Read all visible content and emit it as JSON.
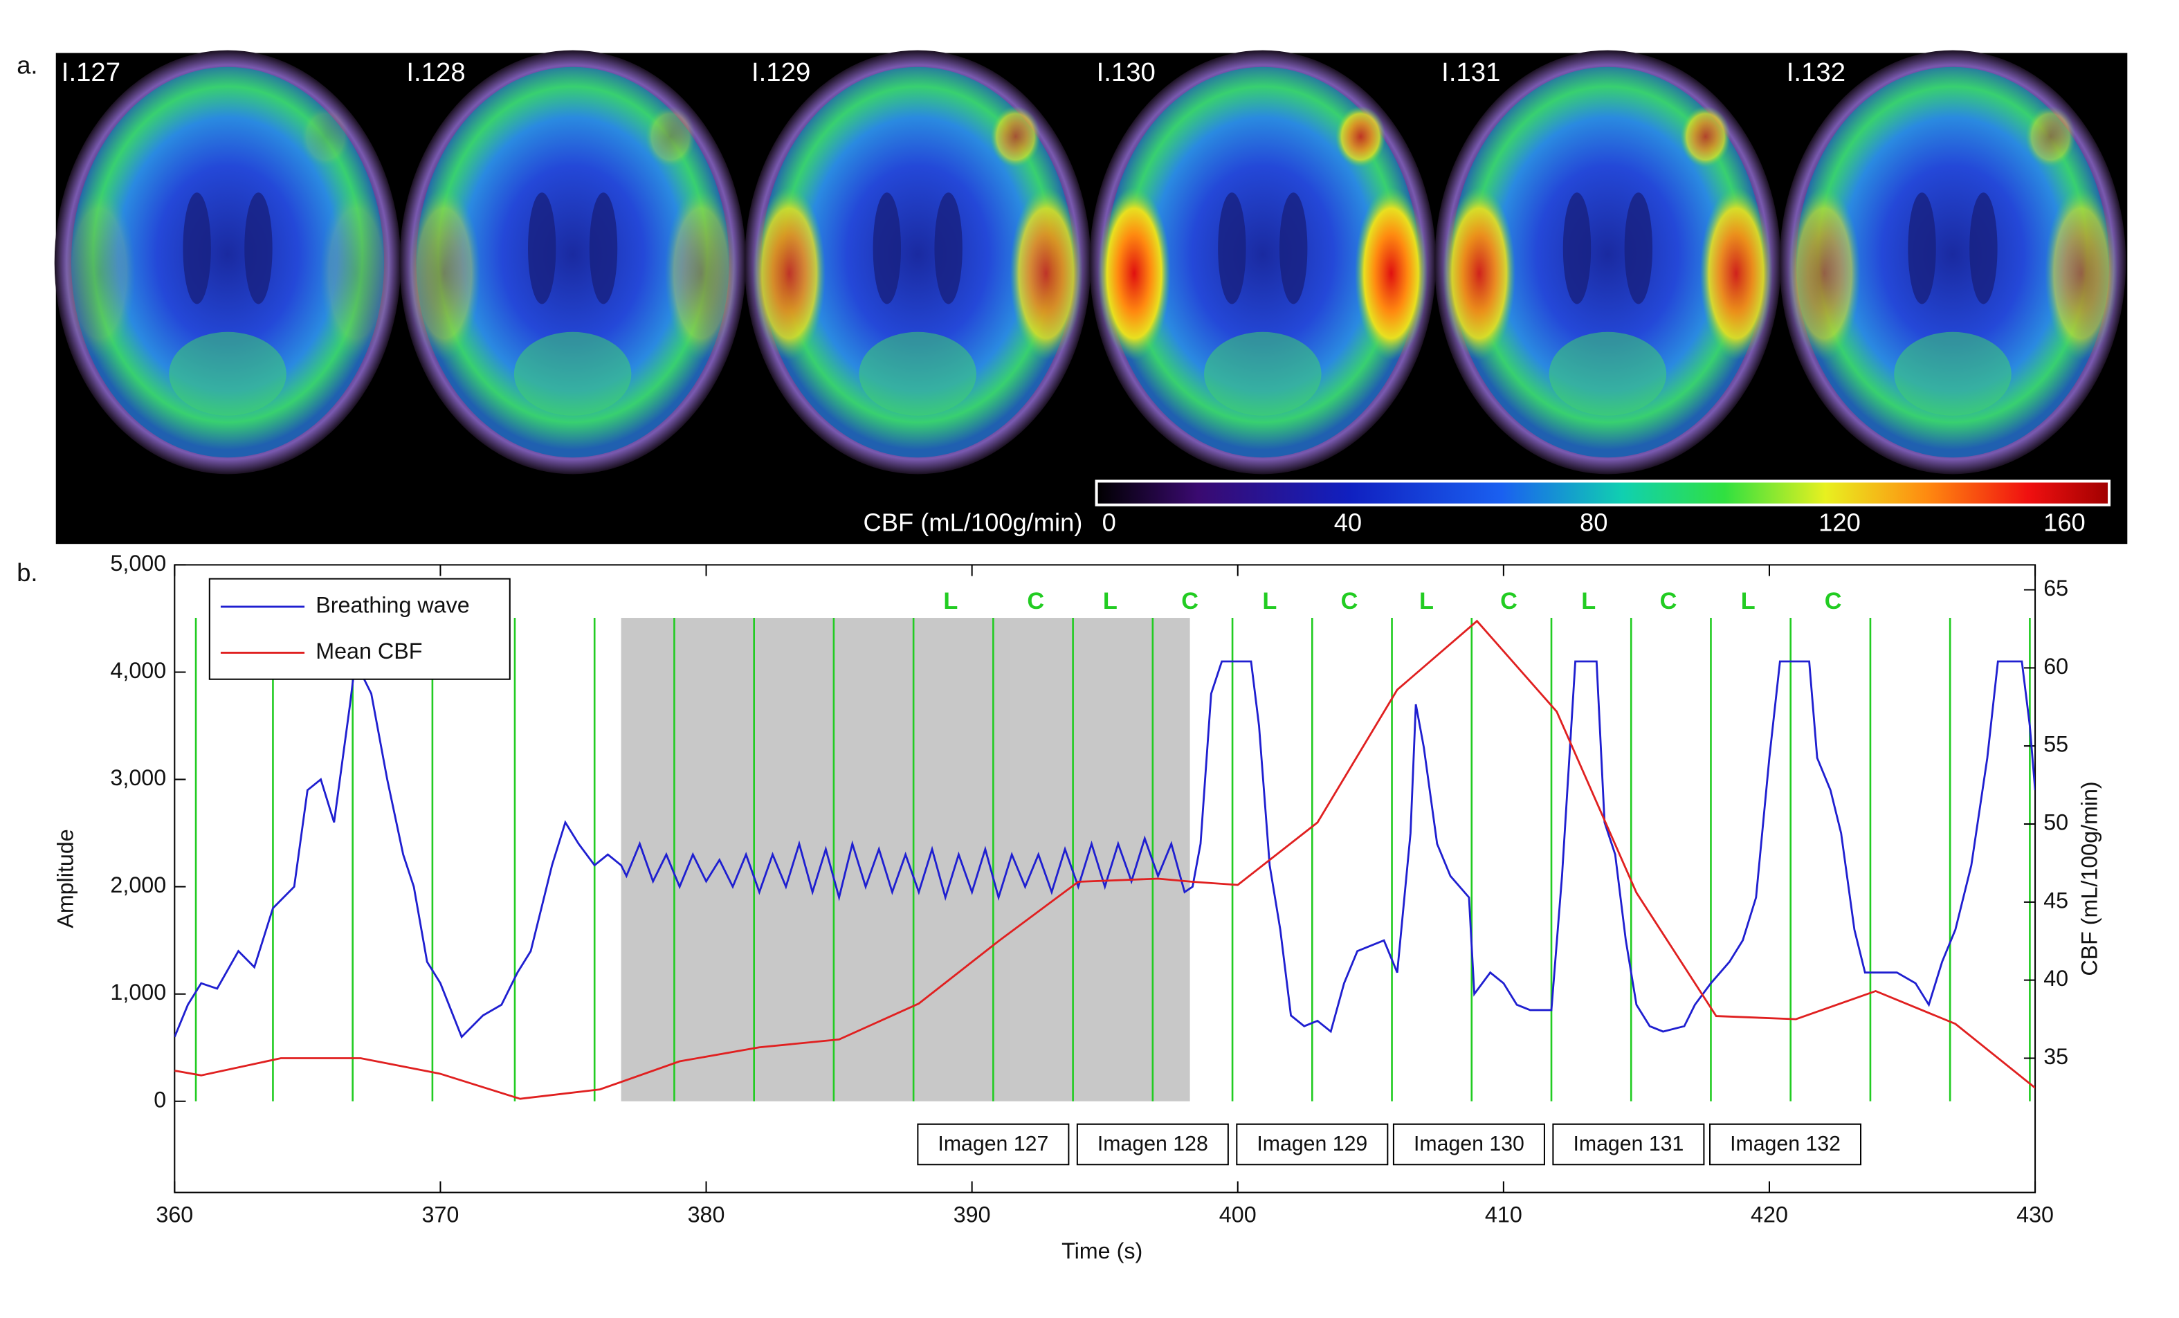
{
  "panel_a": {
    "label": "a.",
    "slices": [
      "I.127",
      "I.128",
      "I.129",
      "I.130",
      "I.131",
      "I.132"
    ],
    "colorbar": {
      "label": "CBF (mL/100g/min)",
      "lim": [
        0,
        160
      ],
      "ticks": [
        0,
        40,
        80,
        120,
        160
      ]
    }
  },
  "chart_data": {
    "type": "line",
    "panel_label": "b.",
    "xlabel": "Time (s)",
    "ylabel": "Amplitude",
    "y2label": "CBF (mL/100g/min)",
    "xlim": [
      360,
      430
    ],
    "xticks": [
      360,
      370,
      380,
      390,
      400,
      410,
      420,
      430
    ],
    "ylim": [
      -850,
      5000
    ],
    "yticks": [
      0,
      {
        "value": 1000,
        "label": "1,000"
      },
      {
        "value": 2000,
        "label": "2,000"
      },
      {
        "value": 3000,
        "label": "3,000"
      },
      {
        "value": 4000,
        "label": "4,000"
      },
      {
        "value": 5000,
        "label": "5,000"
      }
    ],
    "y2lim": [
      26.4,
      66.6
    ],
    "y2ticks": [
      35,
      40,
      45,
      50,
      55,
      60,
      65
    ],
    "legend": "upper left",
    "series": [
      {
        "name": "Breathing wave",
        "color": "#1f1fd0",
        "axis": "y",
        "x": [
          360,
          360.5,
          361,
          361.6,
          362.4,
          363,
          363.7,
          364.5,
          365,
          365.5,
          366,
          366.6,
          366.8,
          367.4,
          368,
          368.6,
          369,
          369.5,
          370,
          370.8,
          371.6,
          372.3,
          372.9,
          373.4,
          374.2,
          374.7,
          375.2,
          375.8,
          376.3,
          376.8,
          377,
          377.5,
          378,
          378.5,
          379,
          379.5,
          380,
          380.5,
          381,
          381.5,
          382,
          382.5,
          383,
          383.5,
          384,
          384.5,
          385,
          385.5,
          386,
          386.5,
          387,
          387.5,
          388,
          388.5,
          389,
          389.5,
          390,
          390.5,
          391,
          391.5,
          392,
          392.5,
          393,
          393.5,
          394,
          394.5,
          395,
          395.5,
          396,
          396.5,
          397,
          397.5,
          398,
          398.3,
          398.6,
          399,
          399.4,
          400.5,
          400.8,
          401.2,
          401.6,
          402,
          402.5,
          403,
          403.5,
          404,
          404.5,
          405,
          405.5,
          406,
          406.5,
          406.7,
          407,
          407.5,
          408,
          408.7,
          408.9,
          409.5,
          410,
          410.5,
          411,
          411.8,
          412.2,
          412.7,
          413.5,
          413.8,
          414.2,
          414.6,
          415,
          415.5,
          416,
          416.8,
          417.2,
          417.8,
          418.5,
          419,
          419.5,
          420,
          420.4,
          421.5,
          421.8,
          422.3,
          422.7,
          423.2,
          423.6,
          424.2,
          424.8,
          425.5,
          426,
          426.5,
          427,
          427.6,
          428.2,
          428.6,
          429.5,
          429.8,
          430
        ],
        "values": [
          600,
          900,
          1100,
          1050,
          1400,
          1250,
          1800,
          2000,
          2900,
          3000,
          2600,
          3700,
          4100,
          3800,
          3000,
          2300,
          2000,
          1300,
          1100,
          600,
          800,
          900,
          1200,
          1400,
          2200,
          2600,
          2400,
          2200,
          2300,
          2200,
          2100,
          2400,
          2050,
          2300,
          2000,
          2300,
          2050,
          2250,
          2000,
          2300,
          1950,
          2300,
          2000,
          2400,
          1950,
          2350,
          1900,
          2400,
          2000,
          2350,
          1950,
          2300,
          1950,
          2350,
          1900,
          2300,
          1950,
          2350,
          1900,
          2300,
          2000,
          2300,
          1950,
          2350,
          2000,
          2400,
          2000,
          2400,
          2050,
          2450,
          2100,
          2400,
          1950,
          2000,
          2400,
          3800,
          4100,
          4100,
          3500,
          2200,
          1600,
          800,
          700,
          750,
          650,
          1100,
          1400,
          1450,
          1500,
          1200,
          2500,
          3700,
          3300,
          2400,
          2100,
          1900,
          1000,
          1200,
          1100,
          900,
          850,
          850,
          2100,
          4100,
          4100,
          2600,
          2300,
          1500,
          900,
          700,
          650,
          700,
          900,
          1100,
          1300,
          1500,
          1900,
          3200,
          4100,
          4100,
          3200,
          2900,
          2500,
          1600,
          1200,
          1200,
          1200,
          1100,
          900,
          1300,
          1600,
          2200,
          3200,
          4100,
          4100,
          3500,
          2900
        ]
      },
      {
        "name": "Mean CBF",
        "color": "#e02020",
        "axis": "y2",
        "x": [
          360,
          361,
          364,
          367,
          370,
          373,
          376,
          379,
          382,
          385,
          388,
          391,
          394,
          397,
          398.3,
          400,
          403,
          406,
          409,
          412,
          415,
          418,
          421,
          424,
          427,
          430
        ],
        "values": [
          34.2,
          33.9,
          35,
          35,
          34,
          32.4,
          33,
          34.8,
          35.7,
          36.2,
          38.5,
          42.5,
          46.3,
          46.5,
          46.3,
          46.1,
          50.1,
          58.6,
          63,
          57.2,
          45.6,
          37.7,
          37.5,
          39.3,
          37.2,
          33.1
        ]
      }
    ],
    "event_lines": [
      360.8,
      363.7,
      366.7,
      369.7,
      372.8,
      375.8,
      378.8,
      381.8,
      384.8,
      387.8,
      390.8,
      393.8,
      396.8,
      399.8,
      402.8,
      405.8,
      408.8,
      411.8,
      414.8,
      417.8,
      420.8,
      423.8,
      426.8,
      429.8
    ],
    "event_color": "#22cc22",
    "shaded_span": [
      376.8,
      398.2
    ],
    "annotations": [
      {
        "text": "L",
        "x": 389.2
      },
      {
        "text": "C",
        "x": 392.4
      },
      {
        "text": "L",
        "x": 395.2
      },
      {
        "text": "C",
        "x": 398.2
      },
      {
        "text": "L",
        "x": 401.2
      },
      {
        "text": "C",
        "x": 404.2
      },
      {
        "text": "L",
        "x": 407.1
      },
      {
        "text": "C",
        "x": 410.2
      },
      {
        "text": "L",
        "x": 413.2
      },
      {
        "text": "C",
        "x": 416.2
      },
      {
        "text": "L",
        "x": 419.2
      },
      {
        "text": "C",
        "x": 422.4
      }
    ],
    "image_labels": [
      {
        "text": "Imagen 127",
        "x": 390.8
      },
      {
        "text": "Imagen 128",
        "x": 396.8
      },
      {
        "text": "Imagen 129",
        "x": 402.8
      },
      {
        "text": "Imagen 130",
        "x": 408.7
      },
      {
        "text": "Imagen 131",
        "x": 414.7
      },
      {
        "text": "Imagen 132",
        "x": 420.6
      }
    ]
  }
}
